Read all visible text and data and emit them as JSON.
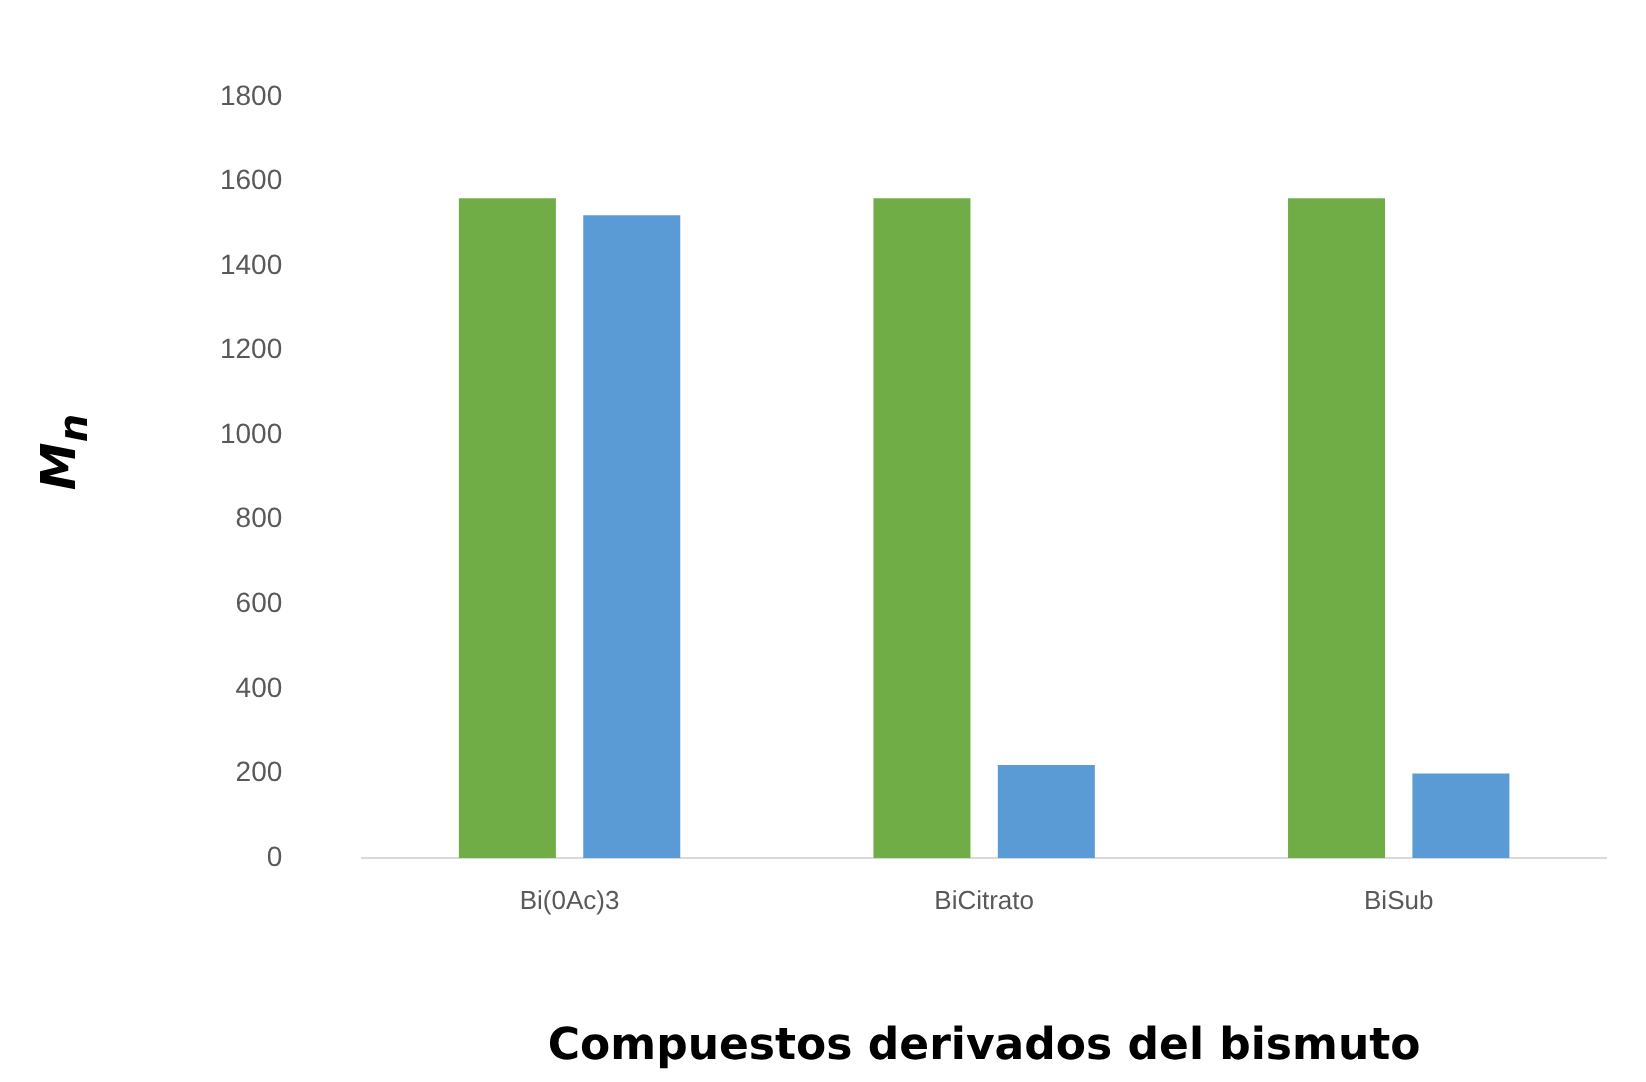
{
  "chart_data": {
    "type": "bar",
    "xlabel": "Compuestos derivados del bismuto",
    "ylabel": "M$_{n}$",
    "categories": [
      "Bi(0Ac)3",
      "BiCitrato",
      "BiSub"
    ],
    "series": [
      {
        "color": "#70ad47",
        "values": [
          1560,
          1560,
          1560
        ]
      },
      {
        "color": "#5b9bd5",
        "values": [
          1520,
          220,
          200
        ]
      }
    ],
    "ylim": [
      0,
      1800
    ],
    "yticks": [
      0,
      200,
      400,
      600,
      800,
      1000,
      1200,
      1400,
      1600,
      1800
    ],
    "grid": false,
    "legend": false
  }
}
